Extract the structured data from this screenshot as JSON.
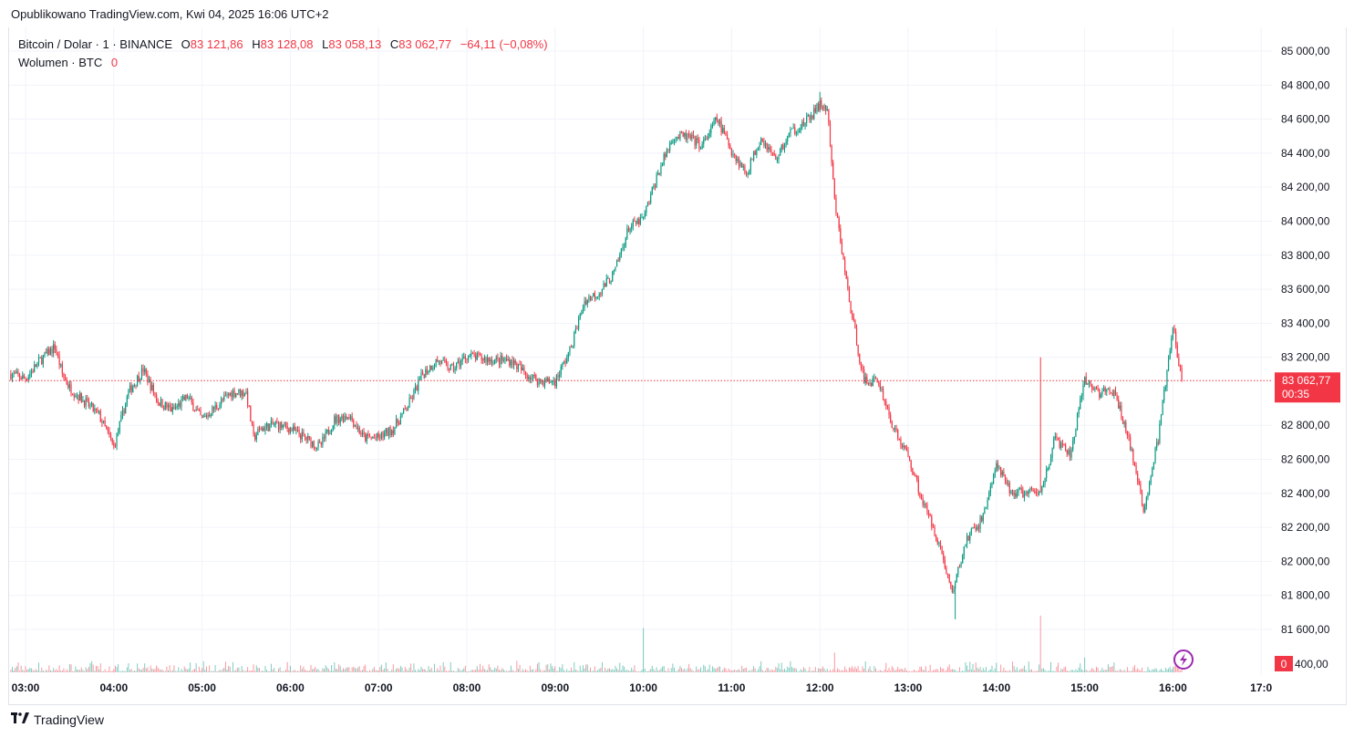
{
  "published": "Opublikowano TradingView.com, Kwi 04, 2025 16:06 UTC+2",
  "legend": {
    "symbol": "Bitcoin / Dolar · 1 · BINANCE",
    "open_label": "O",
    "open": "83 121,86",
    "high_label": "H",
    "high": "83 128,08",
    "low_label": "L",
    "low": "83 058,13",
    "close_label": "C",
    "close": "83 062,77",
    "change": "−64,11 (−0,08%)",
    "volume_label": "Wolumen · BTC",
    "volume_value": "0"
  },
  "brand": {
    "name": "TradingView",
    "logo": "17"
  },
  "colors": {
    "up": "#089981",
    "down": "#f23645",
    "grid": "#f0f3fa",
    "axis_text": "#131722",
    "event": "#9c27b0"
  },
  "chart_data": {
    "type": "candlestick",
    "symbol": "BTCUSD",
    "interval": "1 minute",
    "ylim": [
      81550,
      85050
    ],
    "y_ticks": [
      85000,
      84800,
      84600,
      84400,
      84200,
      84000,
      83800,
      83600,
      83400,
      83200,
      82800,
      82600,
      82400,
      82200,
      82000,
      81800,
      81600
    ],
    "y_tick_labels": [
      "85 000,00",
      "84 800,00",
      "84 600,00",
      "84 400,00",
      "84 200,00",
      "84 000,00",
      "83 800,00",
      "83 600,00",
      "83 400,00",
      "83 200,00",
      "82 800,00",
      "82 600,00",
      "82 400,00",
      "82 200,00",
      "82 000,00",
      "81 800,00",
      "81 600,00"
    ],
    "x_tick_labels": [
      "03:00",
      "04:00",
      "05:00",
      "06:00",
      "07:00",
      "08:00",
      "09:00",
      "10:00",
      "11:00",
      "12:00",
      "13:00",
      "14:00",
      "15:00",
      "16:00",
      "17:0"
    ],
    "last_price": 83062.77,
    "last_price_label": "83 062,77",
    "countdown": "00:35",
    "volume_axis_label": "400,00",
    "volume_last_label": "0",
    "close_path": [
      [
        "02:50",
        83102
      ],
      [
        "03:00",
        83075
      ],
      [
        "03:10",
        83182
      ],
      [
        "03:20",
        83262
      ],
      [
        "03:25",
        83102
      ],
      [
        "03:30",
        83021
      ],
      [
        "03:40",
        82941
      ],
      [
        "03:50",
        82860
      ],
      [
        "04:00",
        82672
      ],
      [
        "04:05",
        82833
      ],
      [
        "04:10",
        82994
      ],
      [
        "04:20",
        83128
      ],
      [
        "04:30",
        82941
      ],
      [
        "04:40",
        82887
      ],
      [
        "04:50",
        82967
      ],
      [
        "05:00",
        82833
      ],
      [
        "05:10",
        82914
      ],
      [
        "05:20",
        82994
      ],
      [
        "05:30",
        82994
      ],
      [
        "05:35",
        82726
      ],
      [
        "05:40",
        82780
      ],
      [
        "05:50",
        82807
      ],
      [
        "06:00",
        82780
      ],
      [
        "06:10",
        82726
      ],
      [
        "06:20",
        82672
      ],
      [
        "06:30",
        82833
      ],
      [
        "06:40",
        82860
      ],
      [
        "06:50",
        82726
      ],
      [
        "07:00",
        82726
      ],
      [
        "07:10",
        82780
      ],
      [
        "07:20",
        82914
      ],
      [
        "07:30",
        83102
      ],
      [
        "07:40",
        83182
      ],
      [
        "07:50",
        83128
      ],
      [
        "08:00",
        83209
      ],
      [
        "08:10",
        83193
      ],
      [
        "08:20",
        83182
      ],
      [
        "08:30",
        83182
      ],
      [
        "08:40",
        83102
      ],
      [
        "08:50",
        83059
      ],
      [
        "09:00",
        83059
      ],
      [
        "09:10",
        83236
      ],
      [
        "09:20",
        83531
      ],
      [
        "09:30",
        83584
      ],
      [
        "09:40",
        83691
      ],
      [
        "09:50",
        83960
      ],
      [
        "10:00",
        84013
      ],
      [
        "10:10",
        84281
      ],
      [
        "10:20",
        84496
      ],
      [
        "10:30",
        84496
      ],
      [
        "10:40",
        84442
      ],
      [
        "10:50",
        84603
      ],
      [
        "11:00",
        84415
      ],
      [
        "11:10",
        84281
      ],
      [
        "11:20",
        84496
      ],
      [
        "11:30",
        84362
      ],
      [
        "11:40",
        84523
      ],
      [
        "11:50",
        84576
      ],
      [
        "12:00",
        84684
      ],
      [
        "12:05",
        84657
      ],
      [
        "12:10",
        84120
      ],
      [
        "12:20",
        83531
      ],
      [
        "12:30",
        83059
      ],
      [
        "12:40",
        83059
      ],
      [
        "12:50",
        82780
      ],
      [
        "13:00",
        82619
      ],
      [
        "13:10",
        82351
      ],
      [
        "13:20",
        82136
      ],
      [
        "13:30",
        81814
      ],
      [
        "13:40",
        82136
      ],
      [
        "13:50",
        82243
      ],
      [
        "14:00",
        82565
      ],
      [
        "14:10",
        82404
      ],
      [
        "14:20",
        82404
      ],
      [
        "14:30",
        82404
      ],
      [
        "14:40",
        82726
      ],
      [
        "14:50",
        82619
      ],
      [
        "15:00",
        83059
      ],
      [
        "15:10",
        82994
      ],
      [
        "15:20",
        82994
      ],
      [
        "15:30",
        82726
      ],
      [
        "15:40",
        82296
      ],
      [
        "15:50",
        82726
      ],
      [
        "16:00",
        83370
      ],
      [
        "16:06",
        83063
      ]
    ],
    "volume_spikes": [
      [
        "10:00",
        180
      ],
      [
        "14:30",
        230
      ],
      [
        "12:10",
        80
      ],
      [
        "15:00",
        60
      ]
    ]
  }
}
